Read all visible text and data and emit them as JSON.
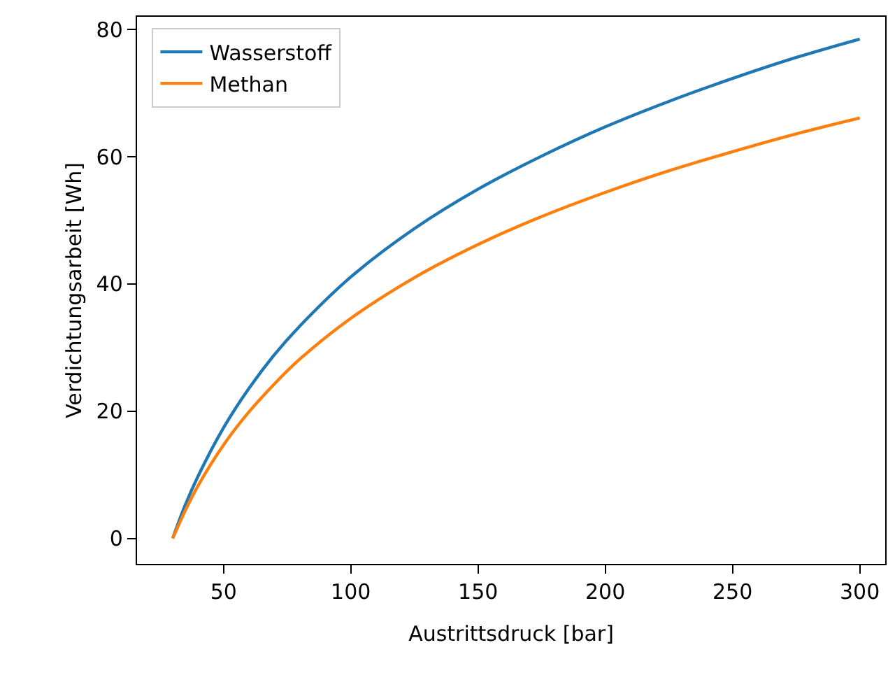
{
  "chart_data": {
    "type": "line",
    "xlabel": "Austrittsdruck [bar]",
    "ylabel": "Verdichtungsarbeit [Wh]",
    "x": [
      30,
      35,
      40,
      50,
      60,
      70,
      80,
      100,
      125,
      150,
      175,
      200,
      225,
      250,
      275,
      300
    ],
    "series": [
      {
        "name": "Wasserstoff",
        "color": "#1f77b4",
        "values": [
          0,
          5.3,
          9.8,
          17.4,
          23.6,
          28.9,
          33.4,
          41.1,
          48.7,
          54.9,
          60.1,
          64.7,
          68.7,
          72.3,
          75.6,
          78.5
        ]
      },
      {
        "name": "Methan",
        "color": "#ff7f0e",
        "values": [
          0,
          4.4,
          8.3,
          14.7,
          19.9,
          24.3,
          28.2,
          34.6,
          41.0,
          46.2,
          50.6,
          54.4,
          57.8,
          60.8,
          63.6,
          66.1
        ]
      }
    ],
    "xlim": [
      16,
      310
    ],
    "xticks": [
      50,
      100,
      150,
      200,
      250,
      300
    ],
    "ylim": [
      -4,
      82
    ],
    "yticks": [
      0,
      20,
      40,
      60,
      80
    ],
    "grid": false,
    "legend": "top left",
    "marker": "none",
    "line_style": "solid"
  }
}
